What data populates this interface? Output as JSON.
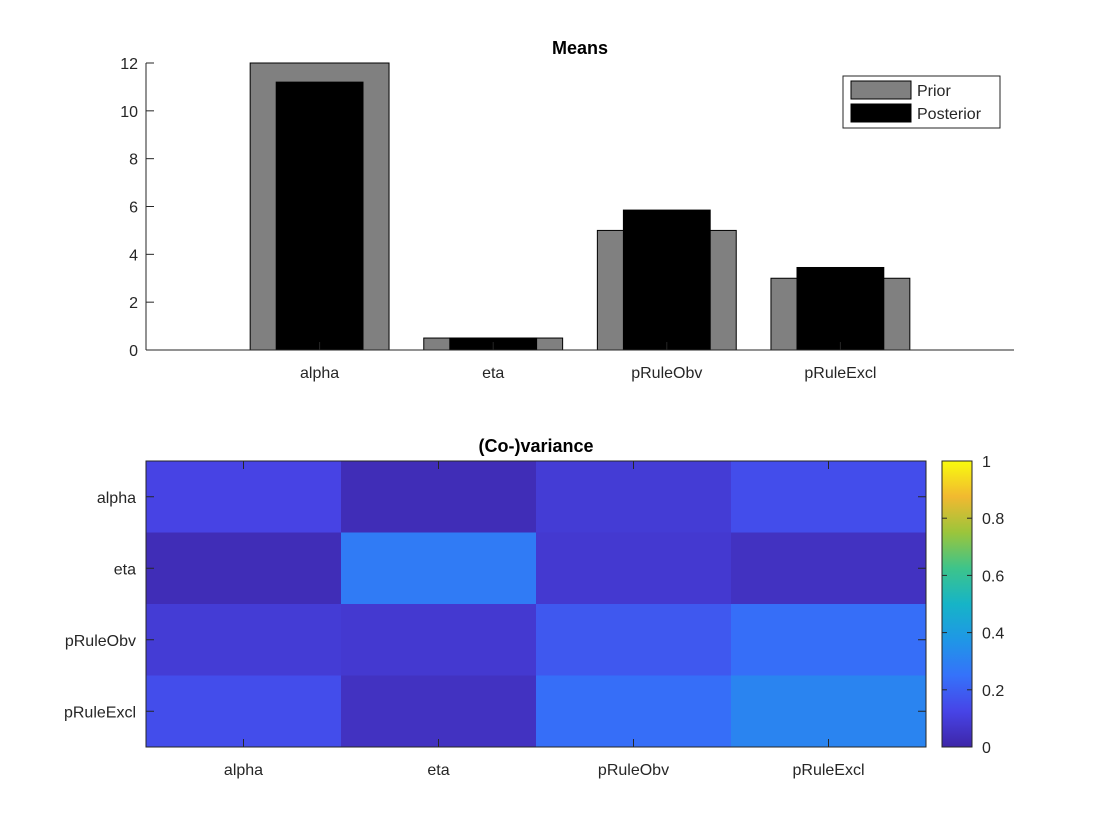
{
  "chart_data": [
    {
      "type": "bar",
      "title": "Means",
      "categories": [
        "alpha",
        "eta",
        "pRuleObv",
        "pRuleExcl"
      ],
      "ylim": [
        0,
        12
      ],
      "yticks": [
        0,
        2,
        4,
        6,
        8,
        10,
        12
      ],
      "series": [
        {
          "name": "Prior",
          "values": [
            12,
            0.5,
            5,
            3
          ],
          "color": "#808080"
        },
        {
          "name": "Posterior",
          "values": [
            11.2,
            0.5,
            5.85,
            3.45
          ],
          "color": "#000000"
        }
      ],
      "legend": "top-right"
    },
    {
      "type": "heatmap",
      "title": "(Co-)variance",
      "xcategories": [
        "alpha",
        "eta",
        "pRuleObv",
        "pRuleExcl"
      ],
      "ycategories": [
        "alpha",
        "eta",
        "pRuleObv",
        "pRuleExcl"
      ],
      "values": [
        [
          0.12,
          0.03,
          0.09,
          0.15
        ],
        [
          0.03,
          0.28,
          0.08,
          0.05
        ],
        [
          0.09,
          0.08,
          0.18,
          0.24
        ],
        [
          0.15,
          0.05,
          0.24,
          0.31
        ]
      ],
      "clim": [
        0,
        1
      ],
      "colorbar_ticks": [
        "0",
        "0.2",
        "0.4",
        "0.6",
        "0.8",
        "1"
      ],
      "colormap": "parula"
    }
  ]
}
